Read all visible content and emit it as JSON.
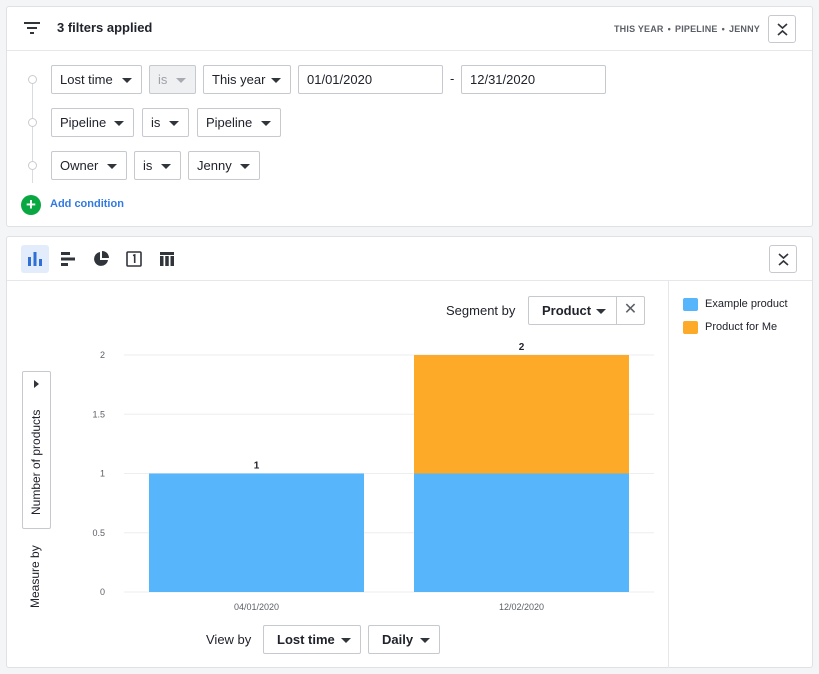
{
  "filters": {
    "title": "3 filters applied",
    "summary": [
      "THIS YEAR",
      "PIPELINE",
      "JENNY"
    ],
    "summary_sep": "•",
    "conditions": [
      {
        "field": "Lost time",
        "operator": "is",
        "operator_disabled": true,
        "value": "This year",
        "from": "01/01/2020",
        "to": "12/31/2020",
        "range_sep": "-"
      },
      {
        "field": "Pipeline",
        "operator": "is",
        "value": "Pipeline"
      },
      {
        "field": "Owner",
        "operator": "is",
        "value": "Jenny"
      }
    ],
    "add_condition_icon": "+",
    "add_condition_label": "Add condition"
  },
  "toolbar": {
    "chart_types": [
      "bar-chart-icon",
      "horizontal-bar-chart-icon",
      "pie-chart-icon",
      "scorecard-icon",
      "table-icon"
    ],
    "active": "bar-chart-icon"
  },
  "segment": {
    "label": "Segment by",
    "value": "Product",
    "clear_icon": "✕"
  },
  "measure": {
    "label": "Measure by",
    "value": "Number of products"
  },
  "view": {
    "label": "View by",
    "value": "Lost time",
    "interval": "Daily"
  },
  "legend": [
    {
      "name": "Example product",
      "color": "#56b5fb"
    },
    {
      "name": "Product for Me",
      "color": "#fcaa27"
    }
  ],
  "chart_data": {
    "type": "bar",
    "stacked": true,
    "categories": [
      "04/01/2020",
      "12/02/2020"
    ],
    "series": [
      {
        "name": "Example product",
        "color": "#56b5fb",
        "values": [
          1,
          1
        ]
      },
      {
        "name": "Product for Me",
        "color": "#fcaa27",
        "values": [
          0,
          1
        ]
      }
    ],
    "totals": [
      1,
      2
    ],
    "yticks": [
      "0",
      "0.5",
      "1",
      "1.5",
      "2"
    ],
    "ylim": [
      0,
      2
    ],
    "grid": true
  }
}
